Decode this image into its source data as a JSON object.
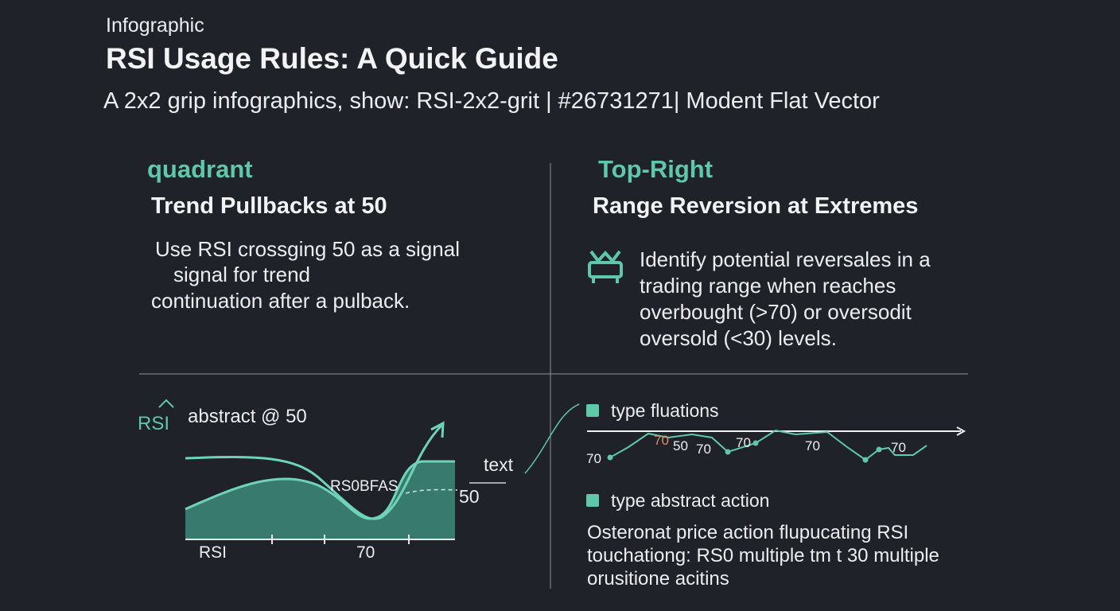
{
  "header": {
    "label": "Infographic",
    "title": "RSI Usage Rules: A Quick Guide",
    "subtitle": "A 2x2 grip infographics, show: RSI-2x2-grit | #26731271| Modent Flat Vector"
  },
  "quadrants": [
    {
      "tag": "quadrant",
      "heading": "Trend Pullbacks at 50",
      "body": [
        "Use RSI crossging 50 as a signal",
        "signal for trend",
        "continuation after a pulback."
      ]
    },
    {
      "tag": "Top-Right",
      "heading": "Range Reversion at Extremes",
      "body": [
        "Identify potential reversales in a",
        "trading range when reaches",
        "overbought (>70) or oversodit",
        "oversold (<30) levels."
      ]
    }
  ],
  "bottom_left": {
    "icon_label": "RSI",
    "caption": "abstract @  50",
    "area_label": "RS0BFAS",
    "level_label": "50",
    "axis_labels": [
      "RSI",
      "70"
    ],
    "callout": "text"
  },
  "bottom_right": {
    "legend": [
      "type fluations",
      "type abstract action"
    ],
    "markers": [
      "70",
      "70",
      "50",
      "70",
      "70",
      "70",
      "70"
    ],
    "body": [
      "Osteronat price action flupucating RSI",
      "touchationg:  RS0 multiple tm t 30 multiple",
      "orusitione acitins"
    ]
  }
}
